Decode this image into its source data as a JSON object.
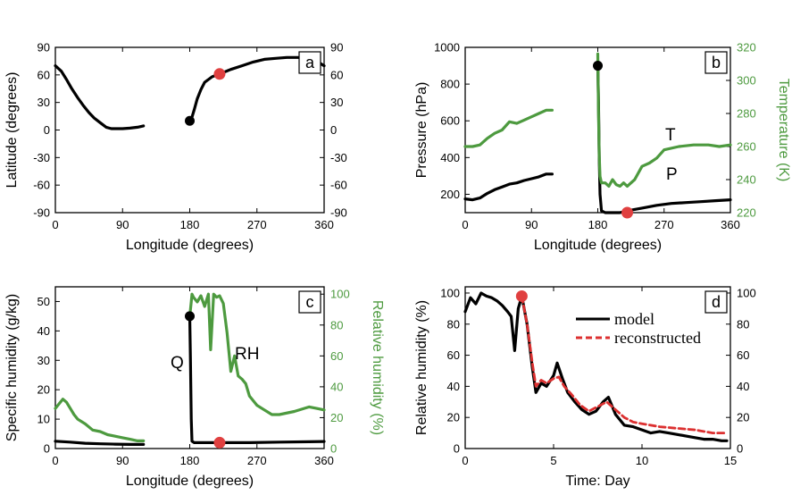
{
  "colors": {
    "black": "#000000",
    "green": "#4d9a3f",
    "red": "#dc3030",
    "marker_red": "#e04040"
  },
  "chart_data": [
    {
      "id": "a",
      "type": "line",
      "panel_label": "a",
      "xlabel": "Longitude (degrees)",
      "ylabel": "Latitude (degrees)",
      "xlim": [
        0,
        360
      ],
      "ylim": [
        -90,
        90
      ],
      "xticks": [
        0,
        90,
        180,
        270,
        360
      ],
      "yticks": [
        -90,
        -60,
        -30,
        0,
        30,
        60,
        90
      ],
      "right_yticks": [
        -90,
        -60,
        -30,
        0,
        30,
        60,
        90
      ],
      "series": [
        {
          "name": "trajectory-1",
          "color": "black",
          "x": [
            0,
            8,
            15,
            22,
            30,
            38,
            45,
            52,
            60,
            68,
            75,
            82,
            90,
            100,
            110,
            118
          ],
          "y": [
            70,
            64,
            55,
            45,
            35,
            26,
            19,
            13,
            8,
            3,
            1.5,
            1.5,
            1.5,
            2,
            3,
            4.5
          ]
        },
        {
          "name": "trajectory-2",
          "color": "black",
          "x": [
            180,
            183,
            186,
            190,
            195,
            200,
            210,
            220,
            235,
            250,
            265,
            280,
            295,
            310,
            325,
            340,
            350,
            360
          ],
          "y": [
            10,
            14,
            22,
            34,
            44,
            52,
            58,
            61,
            66,
            70,
            74,
            77,
            78,
            79,
            79,
            78,
            75,
            70
          ]
        }
      ],
      "markers": [
        {
          "name": "start-marker",
          "color": "black",
          "x": 180,
          "y": 10
        },
        {
          "name": "red-marker",
          "color": "red",
          "x": 220,
          "y": 61
        }
      ]
    },
    {
      "id": "b",
      "type": "line",
      "panel_label": "b",
      "xlabel": "Longitude (degrees)",
      "ylabel": "Pressure (hPa)",
      "ylabel_right": "Temperature (K)",
      "xlim": [
        0,
        360
      ],
      "ylim": [
        100,
        1000
      ],
      "ylim_right": [
        220,
        320
      ],
      "xticks": [
        0,
        90,
        180,
        270,
        360
      ],
      "yticks": [
        200,
        400,
        600,
        800,
        1000
      ],
      "right_yticks": [
        220,
        240,
        260,
        280,
        300,
        320
      ],
      "annotations": [
        "T",
        "P"
      ],
      "series": [
        {
          "name": "pressure-1",
          "axis": "left",
          "color": "black",
          "x": [
            0,
            10,
            20,
            30,
            40,
            50,
            60,
            70,
            80,
            90,
            100,
            110,
            118
          ],
          "y": [
            175,
            170,
            180,
            205,
            225,
            240,
            255,
            262,
            275,
            285,
            295,
            310,
            310
          ]
        },
        {
          "name": "pressure-2",
          "axis": "left",
          "color": "black",
          "x": [
            180,
            181,
            182,
            183,
            185,
            190,
            200,
            210,
            220,
            240,
            260,
            280,
            300,
            320,
            340,
            360
          ],
          "y": [
            900,
            700,
            400,
            200,
            110,
            100,
            100,
            100,
            110,
            125,
            140,
            150,
            155,
            160,
            165,
            170
          ]
        },
        {
          "name": "temperature-1",
          "axis": "right",
          "color": "green",
          "x": [
            0,
            10,
            20,
            30,
            40,
            50,
            60,
            70,
            80,
            90,
            100,
            110,
            118
          ],
          "y": [
            260,
            260,
            261,
            265,
            268,
            270,
            275,
            274,
            276,
            278,
            280,
            282,
            282
          ]
        },
        {
          "name": "temperature-2",
          "axis": "right",
          "color": "green",
          "x": [
            180,
            181,
            182,
            183,
            185,
            190,
            195,
            200,
            205,
            210,
            215,
            220,
            230,
            240,
            250,
            260,
            270,
            290,
            310,
            330,
            345,
            360
          ],
          "y": [
            316,
            280,
            255,
            242,
            238,
            238,
            236,
            240,
            237,
            236,
            238,
            236,
            240,
            248,
            250,
            253,
            258,
            260,
            261,
            261,
            260,
            261
          ]
        }
      ],
      "markers": [
        {
          "name": "start-marker",
          "axis": "left",
          "color": "black",
          "x": 180,
          "y": 900
        },
        {
          "name": "red-marker",
          "axis": "left",
          "color": "red",
          "x": 220,
          "y": 100
        }
      ]
    },
    {
      "id": "c",
      "type": "line",
      "panel_label": "c",
      "xlabel": "Longitude (degrees)",
      "ylabel": "Specific humidity (g/kg)",
      "ylabel_right": "Relative humidity (%)",
      "xlim": [
        0,
        360
      ],
      "ylim": [
        0,
        55
      ],
      "ylim_right": [
        0,
        104.76
      ],
      "xticks": [
        0,
        90,
        180,
        270,
        360
      ],
      "yticks": [
        0,
        10,
        20,
        30,
        40,
        50
      ],
      "right_yticks": [
        0,
        20,
        40,
        60,
        80,
        100
      ],
      "annotations": [
        "Q",
        "RH"
      ],
      "series": [
        {
          "name": "specific-humidity-1",
          "axis": "left",
          "color": "black",
          "x": [
            0,
            20,
            40,
            60,
            80,
            100,
            118
          ],
          "y": [
            2.5,
            2.2,
            1.8,
            1.6,
            1.5,
            1.4,
            1.4
          ]
        },
        {
          "name": "specific-humidity-2",
          "axis": "left",
          "color": "black",
          "x": [
            180,
            181,
            182,
            183,
            186,
            200,
            220,
            260,
            300,
            340,
            360
          ],
          "y": [
            45,
            30,
            10,
            2.5,
            2,
            2,
            2,
            2,
            2.2,
            2.3,
            2.4
          ]
        },
        {
          "name": "relative-humidity-1",
          "axis": "right",
          "color": "green",
          "x": [
            0,
            5,
            10,
            15,
            20,
            25,
            30,
            40,
            50,
            60,
            70,
            80,
            90,
            100,
            110,
            118
          ],
          "y": [
            26,
            29,
            32,
            30,
            26,
            22,
            19,
            16,
            12,
            11,
            9,
            8,
            7,
            6,
            5,
            5
          ]
        },
        {
          "name": "relative-humidity-2",
          "axis": "right",
          "color": "green",
          "x": [
            180,
            181,
            182,
            183,
            185,
            190,
            195,
            200,
            205,
            208,
            212,
            216,
            220,
            225,
            230,
            235,
            240,
            245,
            250,
            255,
            260,
            270,
            280,
            290,
            300,
            320,
            340,
            350,
            360
          ],
          "y": [
            85,
            90,
            95,
            100,
            98,
            95,
            99,
            92,
            100,
            64,
            100,
            98,
            99,
            94,
            75,
            50,
            60,
            47,
            45,
            42,
            34,
            28,
            25,
            22,
            22,
            24,
            27,
            26,
            25
          ]
        }
      ],
      "markers": [
        {
          "name": "start-marker",
          "axis": "left",
          "color": "black",
          "x": 180,
          "y": 45
        },
        {
          "name": "red-marker",
          "axis": "left",
          "color": "red",
          "x": 220,
          "y": 2
        }
      ]
    },
    {
      "id": "d",
      "type": "line",
      "panel_label": "d",
      "xlabel": "Time: Day",
      "ylabel": "Relative humidity (%)",
      "xlim": [
        0,
        15
      ],
      "ylim": [
        0,
        104
      ],
      "xticks": [
        0,
        5,
        10,
        15
      ],
      "yticks": [
        0,
        20,
        40,
        60,
        80,
        100
      ],
      "right_yticks": [
        0,
        20,
        40,
        60,
        80,
        100
      ],
      "legend_position": "top-right",
      "series": [
        {
          "name": "model",
          "color": "black",
          "dashed": false,
          "x": [
            0,
            0.3,
            0.6,
            0.9,
            1.2,
            1.5,
            1.8,
            2.1,
            2.4,
            2.6,
            2.8,
            3.0,
            3.2,
            3.5,
            3.8,
            4.0,
            4.3,
            4.6,
            5.0,
            5.2,
            5.5,
            5.8,
            6.2,
            6.6,
            7.0,
            7.4,
            7.8,
            8.1,
            8.5,
            9.0,
            9.5,
            10.0,
            10.5,
            11.0,
            11.5,
            12.0,
            12.5,
            13.0,
            13.5,
            14.0,
            14.5,
            14.8
          ],
          "y": [
            88,
            97,
            93,
            100,
            98,
            97,
            95,
            92,
            88,
            85,
            63,
            90,
            98,
            80,
            52,
            36,
            42,
            40,
            47,
            55,
            45,
            36,
            30,
            25,
            22,
            24,
            30,
            33,
            22,
            15,
            14,
            12,
            10,
            11,
            10,
            9,
            8,
            7,
            6,
            6,
            5,
            5
          ]
        },
        {
          "name": "reconstructed",
          "color": "red",
          "dashed": true,
          "x": [
            3.2,
            3.5,
            3.8,
            4.0,
            4.3,
            4.6,
            5.0,
            5.3,
            5.6,
            6.0,
            6.5,
            7.0,
            7.5,
            8.0,
            8.5,
            9.0,
            9.5,
            10.0,
            11.0,
            12.0,
            13.0,
            14.0,
            14.8
          ],
          "y": [
            98,
            80,
            55,
            40,
            44,
            42,
            45,
            46,
            40,
            35,
            28,
            24,
            27,
            30,
            25,
            20,
            17,
            16,
            14,
            13,
            12,
            10,
            10
          ]
        }
      ],
      "markers": [
        {
          "name": "red-marker",
          "color": "red",
          "x": 3.2,
          "y": 98
        }
      ],
      "legend": [
        {
          "label": "model",
          "color": "black",
          "dashed": false
        },
        {
          "label": "reconstructed",
          "color": "red",
          "dashed": true
        }
      ]
    }
  ]
}
